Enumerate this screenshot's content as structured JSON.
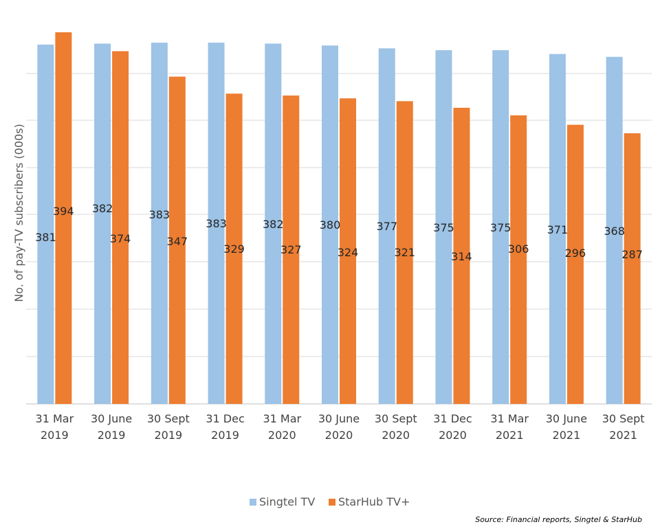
{
  "chart_data": {
    "type": "bar",
    "ylabel": "No. of pay-TV subscribers (000s)",
    "categories": [
      [
        "31 Mar",
        "2019"
      ],
      [
        "30 June",
        "2019"
      ],
      [
        "30 Sept",
        "2019"
      ],
      [
        "31 Dec",
        "2019"
      ],
      [
        "31 Mar",
        "2020"
      ],
      [
        "30 June",
        "2020"
      ],
      [
        "30 Sept",
        "2020"
      ],
      [
        "31 Dec",
        "2020"
      ],
      [
        "31 Mar",
        "2021"
      ],
      [
        "30 June",
        "2021"
      ],
      [
        "30 Sept",
        "2021"
      ]
    ],
    "series": [
      {
        "name": "Singtel TV",
        "color": "#9DC3E6",
        "values": [
          381,
          382,
          383,
          383,
          382,
          380,
          377,
          375,
          375,
          371,
          368
        ]
      },
      {
        "name": "StarHub TV+",
        "color": "#ED7D31",
        "values": [
          394,
          374,
          347,
          329,
          327,
          324,
          321,
          314,
          306,
          296,
          287
        ]
      }
    ],
    "ylim": [
      0,
      400
    ],
    "grid": true,
    "legend_position": "bottom"
  },
  "source_note": "Source: Financial reports, Singtel & StarHub"
}
